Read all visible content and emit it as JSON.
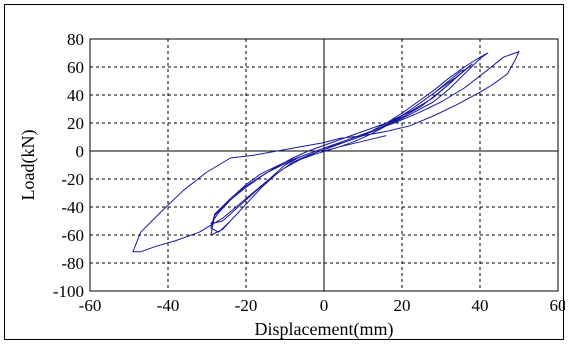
{
  "chart_data": {
    "type": "line",
    "title": "",
    "xlabel": "Displacement(mm)",
    "ylabel": "Load(kN)",
    "xlim": [
      -60,
      60
    ],
    "ylim": [
      -100,
      80
    ],
    "xticks": [
      -60,
      -40,
      -20,
      0,
      20,
      40,
      60
    ],
    "yticks": [
      -100,
      -80,
      -60,
      -40,
      -20,
      0,
      20,
      40,
      60,
      80
    ],
    "grid": true,
    "grid_style": "dashed",
    "series_color": "#1a1a9c",
    "series": [
      {
        "description": "hysteresis load-displacement loops",
        "x": [
          0,
          4,
          8,
          12,
          16,
          20,
          24,
          28,
          32,
          35,
          36,
          33,
          28,
          22,
          16,
          10,
          5,
          0,
          -4,
          -8,
          -12,
          -16,
          -20,
          -24,
          -27,
          -29,
          -26,
          -22,
          -18,
          -14,
          -10,
          -6,
          -2,
          2,
          6,
          10,
          14,
          18,
          22,
          26,
          30,
          34,
          37,
          38,
          35,
          30,
          25,
          20,
          15,
          10,
          5,
          0,
          -5,
          -10,
          -15,
          -20,
          -24,
          -28,
          -29,
          -27,
          -24,
          -20,
          -16,
          -12,
          -8,
          -4,
          0,
          4,
          8,
          12,
          16,
          20,
          24,
          28,
          32,
          36,
          40,
          42,
          40,
          36,
          32,
          28,
          22,
          16,
          10,
          4,
          0,
          -4,
          -10,
          -16,
          -20,
          -24,
          -28,
          -29,
          -26,
          -22,
          -18,
          -14,
          -10,
          -6,
          -2,
          2,
          6,
          12,
          18,
          24,
          30,
          36,
          42,
          46,
          50,
          49,
          47,
          43,
          40,
          34,
          28,
          22,
          16,
          10,
          4,
          0,
          -6,
          -12,
          -18,
          -24,
          -30,
          -36,
          -42,
          -47,
          -49,
          -47,
          -43,
          -38,
          -32,
          -26,
          -20,
          -14,
          -8,
          -2,
          4,
          10,
          16
        ],
        "y": [
          0,
          3,
          7,
          12,
          18,
          25,
          33,
          41,
          50,
          57,
          58,
          50,
          38,
          28,
          20,
          14,
          9,
          4,
          0,
          -5,
          -11,
          -18,
          -26,
          -35,
          -44,
          -52,
          -50,
          -40,
          -30,
          -20,
          -12,
          -6,
          -1,
          3,
          7,
          11,
          16,
          22,
          29,
          37,
          45,
          53,
          60,
          62,
          55,
          43,
          32,
          24,
          17,
          11,
          6,
          2,
          -3,
          -9,
          -16,
          -25,
          -34,
          -45,
          -55,
          -58,
          -50,
          -38,
          -26,
          -16,
          -8,
          -3,
          1,
          5,
          9,
          14,
          20,
          27,
          35,
          43,
          52,
          60,
          67,
          70,
          66,
          55,
          44,
          35,
          26,
          18,
          12,
          6,
          2,
          -2,
          -8,
          -16,
          -24,
          -34,
          -46,
          -60,
          -56,
          -44,
          -32,
          -20,
          -10,
          -4,
          0,
          4,
          8,
          14,
          20,
          27,
          35,
          45,
          58,
          67,
          71,
          65,
          55,
          47,
          42,
          33,
          25,
          18,
          14,
          11,
          9,
          6,
          3,
          0,
          -3,
          -5,
          -15,
          -28,
          -44,
          -58,
          -72,
          -72,
          -68,
          -64,
          -58,
          -48,
          -34,
          -20,
          -8,
          -2,
          3,
          7,
          11
        ]
      }
    ]
  }
}
